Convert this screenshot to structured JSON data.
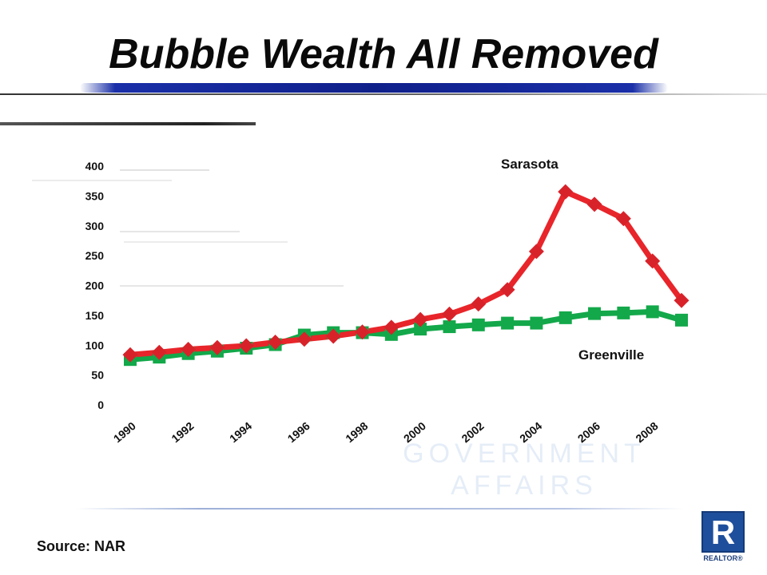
{
  "slide": {
    "title": "Bubble Wealth All Removed",
    "source": "Source: NAR",
    "watermark_line1": "GOVERNMENT",
    "watermark_line2": "AFFAIRS",
    "logo_letter": "R",
    "logo_text": "REALTOR®"
  },
  "colors": {
    "sarasota": "#e8252a",
    "greenville": "#13a84a",
    "title_bar": "#1a2fa8",
    "logo": "#1e4f9c"
  },
  "chart_data": {
    "type": "line",
    "title": "",
    "xlabel": "",
    "ylabel": "",
    "ylim": [
      0,
      400
    ],
    "yticks": [
      0,
      50,
      100,
      150,
      200,
      250,
      300,
      350,
      400
    ],
    "x": [
      1990,
      1991,
      1992,
      1993,
      1994,
      1995,
      1996,
      1997,
      1998,
      1999,
      2000,
      2001,
      2002,
      2003,
      2004,
      2005,
      2006,
      2007,
      2008,
      2009
    ],
    "xtick_labels": [
      "1990",
      "1992",
      "1994",
      "1996",
      "1998",
      "2000",
      "2002",
      "2004",
      "2006",
      "2008"
    ],
    "grid": false,
    "legend": "none",
    "series": [
      {
        "name": "Sarasota",
        "marker": "diamond",
        "values": [
          84,
          88,
          93,
          96,
          99,
          105,
          110,
          115,
          122,
          130,
          143,
          152,
          169,
          193,
          257,
          357,
          336,
          312,
          241,
          175
        ]
      },
      {
        "name": "Greenville",
        "marker": "square",
        "values": [
          76,
          80,
          86,
          90,
          95,
          101,
          117,
          121,
          121,
          118,
          127,
          131,
          134,
          137,
          137,
          146,
          153,
          154,
          156,
          142
        ]
      }
    ]
  }
}
